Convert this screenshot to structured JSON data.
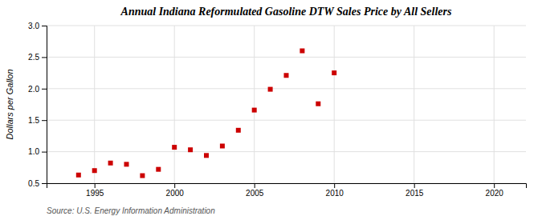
{
  "chart_data": {
    "type": "scatter",
    "title": "Annual Indiana Reformulated Gasoline DTW Sales Price by All Sellers",
    "ylabel": "Dollars per Gallon",
    "annotation": "Source: U.S. Energy Information Administration",
    "x": [
      1994,
      1995,
      1996,
      1997,
      1998,
      1999,
      2000,
      2001,
      2002,
      2003,
      2004,
      2005,
      2006,
      2007,
      2008,
      2009,
      2010
    ],
    "values": [
      0.63,
      0.7,
      0.82,
      0.8,
      0.62,
      0.72,
      1.07,
      1.03,
      0.94,
      1.09,
      1.34,
      1.66,
      1.99,
      2.21,
      2.6,
      1.76,
      2.25
    ],
    "color": "#cc0000",
    "marker": "square",
    "xlim": [
      1992,
      2022
    ],
    "ylim": [
      0.5,
      3.0
    ],
    "xticks": [
      1995,
      2000,
      2005,
      2010,
      2015,
      2020
    ],
    "yticks": [
      0.5,
      {
        "value": 1.0,
        "label": "1.0"
      },
      1.5,
      {
        "value": 2.0,
        "label": "2.0"
      },
      2.5,
      {
        "value": 3.0,
        "label": "3.0"
      }
    ],
    "grid": true
  }
}
